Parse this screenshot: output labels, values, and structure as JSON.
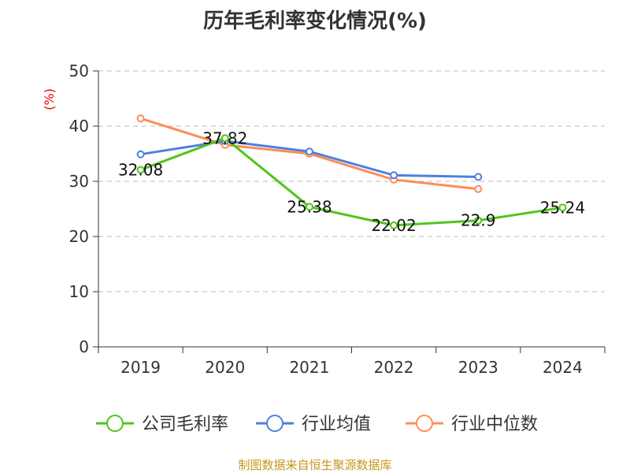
{
  "chart_data": {
    "type": "line",
    "title": "历年毛利率变化情况(%)",
    "ylabel": "(%)",
    "categories": [
      "2019",
      "2020",
      "2021",
      "2022",
      "2023",
      "2024"
    ],
    "ylim": [
      0,
      50
    ],
    "yticks": [
      0,
      10,
      20,
      30,
      40,
      50
    ],
    "grid": true,
    "legend_position": "bottom",
    "series": [
      {
        "name": "公司毛利率",
        "color": "#52c41a",
        "values": [
          32.08,
          37.82,
          25.38,
          22.02,
          22.9,
          25.24
        ],
        "labels": [
          "32.08",
          "37.82",
          "25.38",
          "22.02",
          "22.9",
          "25.24"
        ]
      },
      {
        "name": "行业均值",
        "color": "#4f7fe0",
        "values": [
          34.9,
          37.3,
          35.4,
          31.1,
          30.8,
          null
        ]
      },
      {
        "name": "行业中位数",
        "color": "#ff8c55",
        "values": [
          41.4,
          36.6,
          35.0,
          30.3,
          28.6,
          null
        ]
      }
    ]
  },
  "source": "制图数据来自恒生聚源数据库"
}
